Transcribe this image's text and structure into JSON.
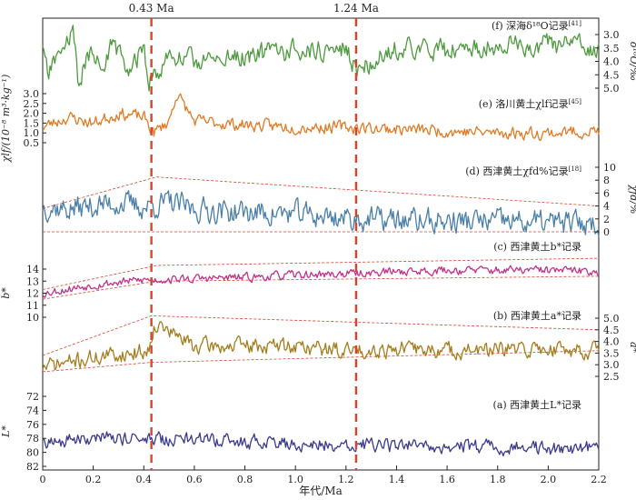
{
  "chart_data": {
    "type": "line",
    "x_axis": {
      "label": "年代/Ma",
      "range": [
        0,
        2.2
      ],
      "ticks": [
        "0",
        "0.2",
        "0.4",
        "0.6",
        "0.8",
        "1.0",
        "1.2",
        "1.4",
        "1.6",
        "1.8",
        "2.0",
        "2.2"
      ]
    },
    "markers": [
      {
        "label": "0.43 Ma",
        "x": 0.43
      },
      {
        "label": "1.24 Ma",
        "x": 1.24
      }
    ],
    "panels": [
      {
        "id": "f",
        "label": "(f) 深海δ¹⁸O记录",
        "ref": "[41]",
        "color": "#4e9a3f",
        "axis_side": "right",
        "axis_label": "δ¹⁸O/‰",
        "inverted": true,
        "ticks": [
          "3.0",
          "3.5",
          "4.0",
          "4.5",
          "5.0"
        ],
        "knots": [
          [
            0,
            3.6
          ],
          [
            0.02,
            4.5
          ],
          [
            0.06,
            3.8
          ],
          [
            0.12,
            3.0
          ],
          [
            0.14,
            4.7
          ],
          [
            0.2,
            3.5
          ],
          [
            0.24,
            4.5
          ],
          [
            0.28,
            3.2
          ],
          [
            0.34,
            4.6
          ],
          [
            0.4,
            3.4
          ],
          [
            0.42,
            4.8
          ],
          [
            0.5,
            3.8
          ],
          [
            0.6,
            4.0
          ],
          [
            0.8,
            3.8
          ],
          [
            1.0,
            3.6
          ],
          [
            1.2,
            3.5
          ],
          [
            1.24,
            4.3
          ],
          [
            1.4,
            3.5
          ],
          [
            1.6,
            3.6
          ],
          [
            1.8,
            3.4
          ],
          [
            2.0,
            3.4
          ],
          [
            2.2,
            3.5
          ]
        ],
        "amp": 0.6,
        "seed": 11,
        "trend": []
      },
      {
        "id": "e",
        "label": "(e) 洛川黄土χlf记录",
        "ref": "[45]",
        "color": "#e07b26",
        "axis_side": "left",
        "axis_label": "χlf/(10⁻⁸ m³·kg⁻¹)",
        "ticks": [
          "0.5",
          "1.0",
          "1.5",
          "2.0",
          "2.5",
          "3.0"
        ],
        "knots": [
          [
            0,
            1.3
          ],
          [
            0.1,
            1.8
          ],
          [
            0.2,
            1.5
          ],
          [
            0.3,
            2.0
          ],
          [
            0.4,
            1.8
          ],
          [
            0.44,
            1.0
          ],
          [
            0.5,
            1.6
          ],
          [
            0.53,
            3.0
          ],
          [
            0.6,
            1.6
          ],
          [
            0.8,
            1.4
          ],
          [
            1.0,
            1.3
          ],
          [
            1.2,
            1.3
          ],
          [
            1.4,
            1.2
          ],
          [
            1.6,
            1.1
          ],
          [
            1.8,
            1.0
          ],
          [
            2.0,
            1.0
          ],
          [
            2.2,
            1.1
          ]
        ],
        "amp": 0.5,
        "seed": 23,
        "trend": []
      },
      {
        "id": "d",
        "label": "(d) 西津黄土χfd%记录",
        "ref": "[18]",
        "color": "#4a7fa8",
        "axis_side": "right",
        "axis_label": "χfd/%",
        "ticks": [
          "0",
          "2",
          "4",
          "6",
          "8",
          "10"
        ],
        "knots": [
          [
            0,
            4.0
          ],
          [
            0.1,
            3.5
          ],
          [
            0.2,
            4.0
          ],
          [
            0.3,
            4.5
          ],
          [
            0.4,
            3.8
          ],
          [
            0.5,
            4.5
          ],
          [
            0.6,
            3.5
          ],
          [
            0.8,
            3.0
          ],
          [
            1.0,
            2.8
          ],
          [
            1.24,
            2.0
          ],
          [
            1.4,
            1.8
          ],
          [
            1.6,
            1.6
          ],
          [
            1.8,
            1.6
          ],
          [
            2.0,
            1.4
          ],
          [
            2.2,
            1.3
          ]
        ],
        "amp": 3.0,
        "seed": 37,
        "trend": [
          [
            [
              0,
              3.6
            ],
            [
              0.45,
              8.5
            ],
            [
              2.2,
              4.0
            ]
          ],
          [
            [
              0,
              0
            ],
            [
              2.2,
              0
            ]
          ]
        ]
      },
      {
        "id": "c",
        "label": "(c) 西津黄土b*记录",
        "ref": "",
        "color": "#c0338c",
        "axis_side": "left",
        "axis_label": "b*",
        "ticks": [
          "10",
          "11",
          "12",
          "13",
          "14"
        ],
        "knots": [
          [
            0,
            12.0
          ],
          [
            0.2,
            12.7
          ],
          [
            0.4,
            13.1
          ],
          [
            0.6,
            13.2
          ],
          [
            0.8,
            13.3
          ],
          [
            1.0,
            13.5
          ],
          [
            1.2,
            13.6
          ],
          [
            1.4,
            13.8
          ],
          [
            1.6,
            13.9
          ],
          [
            1.8,
            13.9
          ],
          [
            2.0,
            13.9
          ],
          [
            2.2,
            13.8
          ]
        ],
        "amp": 0.55,
        "seed": 53,
        "trend": [
          [
            [
              0,
              12.3
            ],
            [
              0.45,
              14.3
            ],
            [
              2.2,
              14.9
            ]
          ],
          [
            [
              0,
              11.5
            ],
            [
              0.45,
              13.0
            ],
            [
              2.2,
              13.4
            ]
          ]
        ]
      },
      {
        "id": "b",
        "label": "(b) 西津黄土a*记录",
        "ref": "",
        "color": "#a57d1e",
        "axis_side": "right",
        "axis_label": "a*",
        "ticks": [
          "2.5",
          "3.0",
          "3.5",
          "4.0",
          "4.5",
          "5.0"
        ],
        "knots": [
          [
            0,
            2.9
          ],
          [
            0.2,
            3.3
          ],
          [
            0.42,
            3.6
          ],
          [
            0.44,
            4.8
          ],
          [
            0.6,
            3.8
          ],
          [
            0.8,
            3.8
          ],
          [
            1.0,
            3.8
          ],
          [
            1.2,
            3.6
          ],
          [
            1.4,
            3.7
          ],
          [
            1.6,
            3.6
          ],
          [
            1.8,
            3.6
          ],
          [
            2.0,
            3.7
          ],
          [
            2.2,
            3.6
          ]
        ],
        "amp": 0.55,
        "seed": 71,
        "trend": [
          [
            [
              0,
              3.4
            ],
            [
              0.43,
              5.1
            ],
            [
              2.2,
              4.5
            ]
          ],
          [
            [
              0,
              2.7
            ],
            [
              0.43,
              3.1
            ],
            [
              2.2,
              3.6
            ]
          ]
        ]
      },
      {
        "id": "a",
        "label": "(a) 西津黄土L*记录",
        "ref": "",
        "color": "#3b3a8c",
        "axis_side": "left",
        "axis_label": "L*",
        "inverted": true,
        "ticks": [
          "72",
          "74",
          "76",
          "78",
          "80",
          "82"
        ],
        "knots": [
          [
            0,
            78.5
          ],
          [
            0.2,
            78
          ],
          [
            0.4,
            78
          ],
          [
            0.6,
            78.2
          ],
          [
            0.8,
            78.5
          ],
          [
            1.0,
            78.8
          ],
          [
            1.2,
            79
          ],
          [
            1.4,
            79
          ],
          [
            1.6,
            79.2
          ],
          [
            1.8,
            79.3
          ],
          [
            2.0,
            79.4
          ],
          [
            2.2,
            79.5
          ]
        ],
        "amp": 1.6,
        "seed": 89,
        "trend": []
      }
    ]
  }
}
